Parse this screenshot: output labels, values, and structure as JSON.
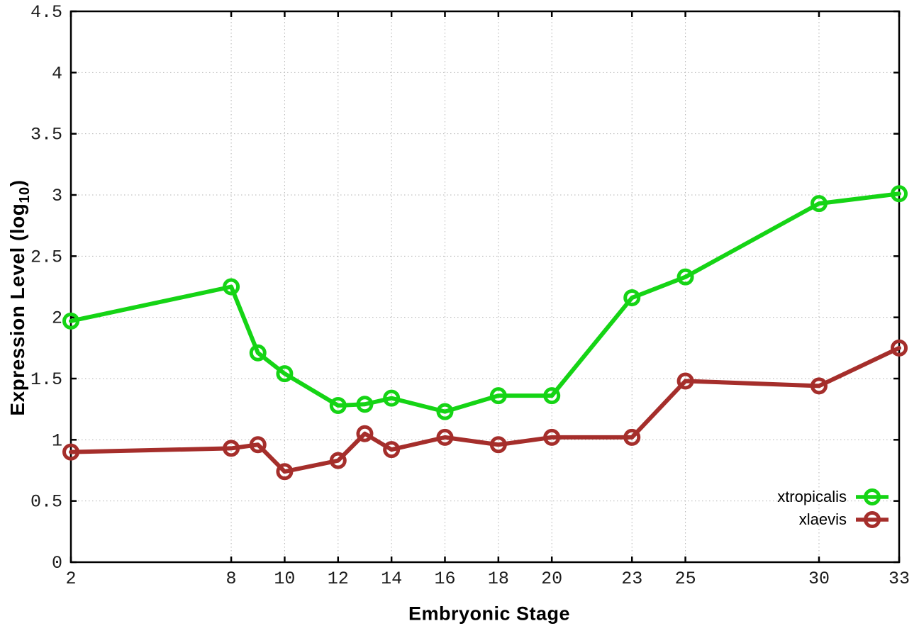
{
  "chart_data": {
    "type": "line",
    "title": "",
    "xlabel": "Embryonic Stage",
    "ylabel": "Expression Level (log10)",
    "ylabel_prefix": "Expression Level (log",
    "ylabel_sub": "10",
    "ylabel_suffix": ")",
    "xlim": [
      2,
      33
    ],
    "ylim": [
      0,
      4.5
    ],
    "grid": true,
    "legend_position": "inside-bottom-right",
    "x": [
      2,
      8,
      9,
      10,
      12,
      13,
      14,
      16,
      18,
      20,
      23,
      25,
      30,
      33
    ],
    "x_tick_values": [
      2,
      8,
      10,
      12,
      14,
      16,
      18,
      20,
      23,
      25,
      30,
      33
    ],
    "x_tick_labels": [
      "2",
      "8",
      "10",
      "12",
      "14",
      "16",
      "18",
      "20",
      "23",
      "25",
      "30",
      "33"
    ],
    "y_tick_values": [
      0,
      0.5,
      1,
      1.5,
      2,
      2.5,
      3,
      3.5,
      4,
      4.5
    ],
    "y_tick_labels": [
      "0",
      "0.5",
      "1",
      "1.5",
      "2",
      "2.5",
      "3",
      "3.5",
      "4",
      "4.5"
    ],
    "series": [
      {
        "name": "xtropicalis",
        "color": "#15d415",
        "marker": "open-circle",
        "values": [
          1.97,
          2.25,
          1.71,
          1.54,
          1.28,
          1.29,
          1.34,
          1.23,
          1.36,
          1.36,
          2.16,
          2.33,
          2.93,
          3.01
        ]
      },
      {
        "name": "xlaevis",
        "color": "#a52e2b",
        "marker": "open-circle",
        "values": [
          0.9,
          0.93,
          0.96,
          0.74,
          0.83,
          1.05,
          0.92,
          1.02,
          0.96,
          1.02,
          1.02,
          1.48,
          1.44,
          1.75
        ]
      }
    ]
  },
  "style": {
    "background": "#ffffff",
    "axis_color": "#000000",
    "grid_color": "#b3b3b3",
    "tick_label_color": "#1c1c1c"
  }
}
